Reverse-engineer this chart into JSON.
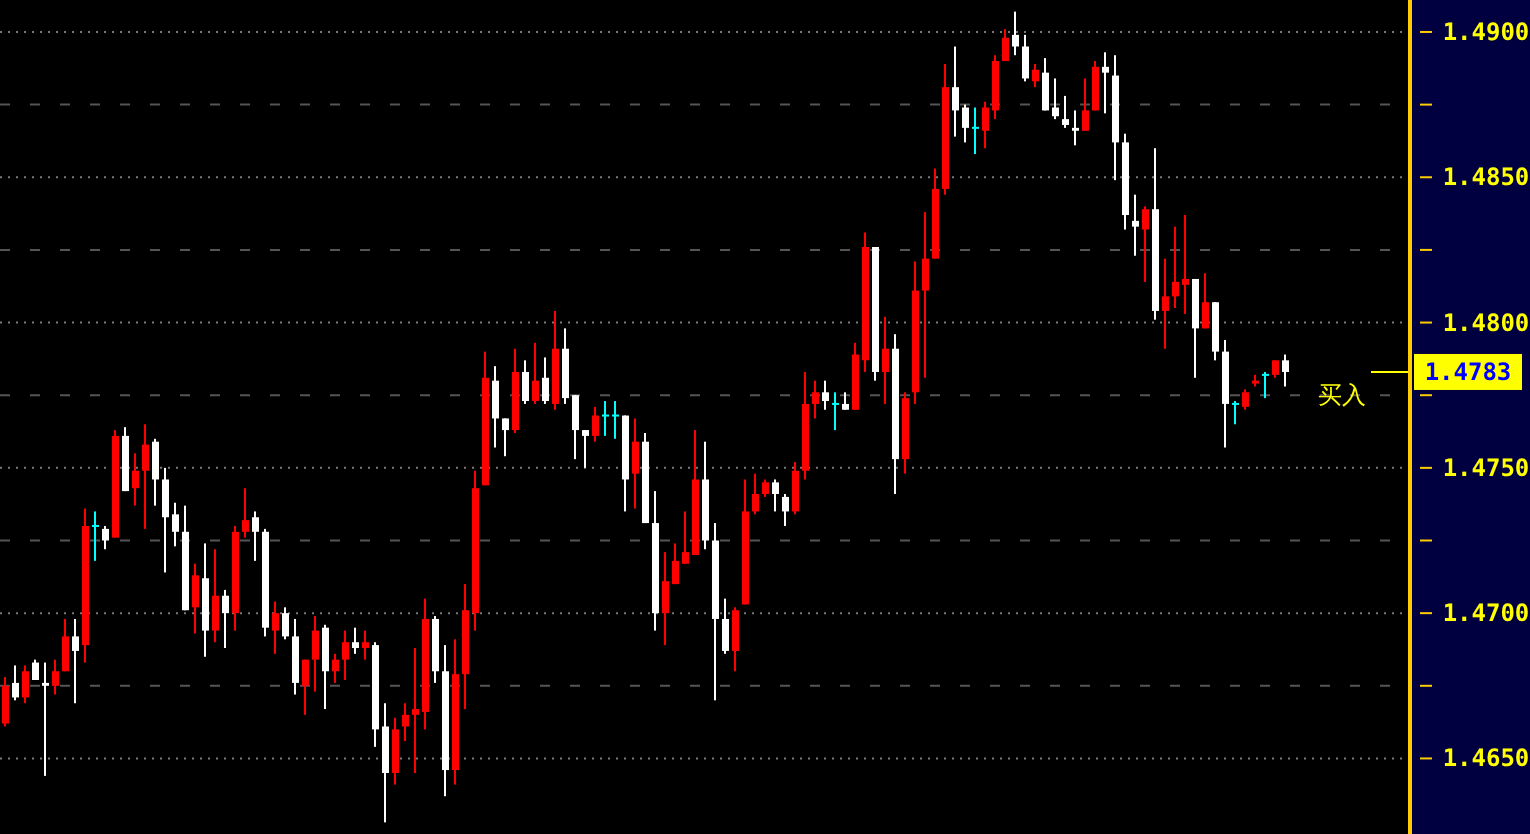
{
  "chart_data": {
    "type": "candlestick",
    "categories": [
      null,
      null,
      null,
      null,
      null,
      null,
      null,
      null,
      null,
      null,
      null,
      null,
      null,
      null,
      null,
      null,
      null,
      null,
      null,
      null,
      null,
      null,
      null,
      null,
      null,
      null,
      null,
      null,
      null,
      null,
      null,
      null,
      null,
      null,
      null,
      null,
      null,
      null,
      null,
      null,
      null,
      null,
      null,
      null,
      null,
      null,
      null,
      null,
      null,
      null,
      null,
      null,
      null,
      null,
      null,
      null,
      null,
      null,
      null,
      null,
      null,
      null,
      null,
      null,
      null,
      null,
      null,
      null,
      null,
      null,
      null,
      null,
      null,
      null,
      null,
      null,
      null,
      null,
      null,
      null,
      null,
      null,
      null,
      null,
      null,
      null,
      null,
      null,
      null,
      null,
      null,
      null,
      null,
      null,
      null,
      null,
      null,
      null,
      null,
      null,
      null,
      null,
      null,
      null,
      null,
      null,
      null,
      null,
      null,
      null,
      null,
      null,
      null,
      null,
      null,
      null,
      null,
      null,
      null,
      null,
      null,
      null,
      null,
      null,
      null,
      null,
      null,
      null,
      null,
      null,
      null,
      null,
      null,
      null,
      null,
      null,
      null,
      null,
      null,
      null,
      null
    ],
    "ohlc": [
      [
        1.4662,
        1.4678,
        1.4661,
        1.4675
      ],
      [
        1.4676,
        1.4682,
        1.467,
        1.4671
      ],
      [
        1.4671,
        1.4682,
        1.4669,
        1.468
      ],
      [
        1.4683,
        1.4684,
        1.4677,
        1.4677
      ],
      [
        1.4676,
        1.4683,
        1.4644,
        1.4675
      ],
      [
        1.4675,
        1.4684,
        1.4672,
        1.468
      ],
      [
        1.468,
        1.4698,
        1.468,
        1.4692
      ],
      [
        1.4692,
        1.4698,
        1.4669,
        1.4687
      ],
      [
        1.4689,
        1.4736,
        1.4683,
        1.473
      ],
      [
        1.473,
        1.4735,
        1.4718,
        1.473
      ],
      [
        1.4729,
        1.473,
        1.4722,
        1.4725
      ],
      [
        1.4726,
        1.4763,
        1.4726,
        1.4761
      ],
      [
        1.4761,
        1.4764,
        1.4742,
        1.4742
      ],
      [
        1.4743,
        1.4755,
        1.4737,
        1.4749
      ],
      [
        1.4749,
        1.4765,
        1.4729,
        1.4758
      ],
      [
        1.4759,
        1.476,
        1.4737,
        1.4746
      ],
      [
        1.4746,
        1.475,
        1.4714,
        1.4733
      ],
      [
        1.4734,
        1.4738,
        1.4723,
        1.4728
      ],
      [
        1.4728,
        1.4737,
        1.4701,
        1.4701
      ],
      [
        1.4702,
        1.4717,
        1.4693,
        1.4713
      ],
      [
        1.4712,
        1.4724,
        1.4685,
        1.4694
      ],
      [
        1.4694,
        1.4722,
        1.469,
        1.4706
      ],
      [
        1.4706,
        1.4708,
        1.4688,
        1.47
      ],
      [
        1.47,
        1.473,
        1.4694,
        1.4728
      ],
      [
        1.4728,
        1.4743,
        1.4726,
        1.4732
      ],
      [
        1.4733,
        1.4735,
        1.4718,
        1.4728
      ],
      [
        1.4728,
        1.4729,
        1.4692,
        1.4695
      ],
      [
        1.4694,
        1.4704,
        1.4686,
        1.47
      ],
      [
        1.47,
        1.4702,
        1.4691,
        1.4692
      ],
      [
        1.4692,
        1.4698,
        1.4672,
        1.4676
      ],
      [
        1.4675,
        1.4684,
        1.4665,
        1.4684
      ],
      [
        1.4684,
        1.4699,
        1.4673,
        1.4694
      ],
      [
        1.4695,
        1.4696,
        1.4667,
        1.468
      ],
      [
        1.468,
        1.4686,
        1.4676,
        1.4684
      ],
      [
        1.4684,
        1.4694,
        1.4677,
        1.469
      ],
      [
        1.469,
        1.4695,
        1.4686,
        1.4688
      ],
      [
        1.4688,
        1.4694,
        1.4684,
        1.469
      ],
      [
        1.4689,
        1.469,
        1.4654,
        1.466
      ],
      [
        1.4661,
        1.4669,
        1.4628,
        1.4645
      ],
      [
        1.4645,
        1.4664,
        1.4641,
        1.466
      ],
      [
        1.4661,
        1.4669,
        1.4656,
        1.4665
      ],
      [
        1.4665,
        1.4688,
        1.4645,
        1.4667
      ],
      [
        1.4666,
        1.4705,
        1.466,
        1.4698
      ],
      [
        1.4698,
        1.4699,
        1.4676,
        1.468
      ],
      [
        1.468,
        1.4689,
        1.4637,
        1.4646
      ],
      [
        1.4646,
        1.4691,
        1.4641,
        1.4679
      ],
      [
        1.4679,
        1.471,
        1.4667,
        1.4701
      ],
      [
        1.47,
        1.4749,
        1.4694,
        1.4743
      ],
      [
        1.4744,
        1.479,
        1.4744,
        1.4781
      ],
      [
        1.478,
        1.4785,
        1.4757,
        1.4767
      ],
      [
        1.4767,
        1.4767,
        1.4754,
        1.4763
      ],
      [
        1.4763,
        1.4791,
        1.4762,
        1.4783
      ],
      [
        1.4783,
        1.4787,
        1.4772,
        1.4773
      ],
      [
        1.4773,
        1.4793,
        1.4772,
        1.478
      ],
      [
        1.4781,
        1.4788,
        1.4772,
        1.4773
      ],
      [
        1.4772,
        1.4804,
        1.477,
        1.4791
      ],
      [
        1.4791,
        1.4798,
        1.4772,
        1.4774
      ],
      [
        1.4775,
        1.4775,
        1.4753,
        1.4763
      ],
      [
        1.4763,
        1.4763,
        1.475,
        1.4761
      ],
      [
        1.4761,
        1.4771,
        1.4759,
        1.4768
      ],
      [
        1.4768,
        1.4773,
        1.4761,
        1.4768
      ],
      [
        1.4768,
        1.4773,
        1.476,
        1.4768
      ],
      [
        1.4768,
        1.4768,
        1.4735,
        1.4746
      ],
      [
        1.4748,
        1.4767,
        1.4736,
        1.4759
      ],
      [
        1.4759,
        1.4762,
        1.4731,
        1.4731
      ],
      [
        1.4731,
        1.4742,
        1.4694,
        1.47
      ],
      [
        1.47,
        1.4721,
        1.4689,
        1.4711
      ],
      [
        1.471,
        1.4724,
        1.471,
        1.4718
      ],
      [
        1.4717,
        1.4735,
        1.4717,
        1.4721
      ],
      [
        1.472,
        1.4763,
        1.472,
        1.4746
      ],
      [
        1.4746,
        1.4759,
        1.4722,
        1.4725
      ],
      [
        1.4725,
        1.4731,
        1.467,
        1.4698
      ],
      [
        1.4698,
        1.4705,
        1.4686,
        1.4687
      ],
      [
        1.4687,
        1.4702,
        1.468,
        1.4701
      ],
      [
        1.4703,
        1.4746,
        1.4703,
        1.4735
      ],
      [
        1.4735,
        1.4748,
        1.4734,
        1.4741
      ],
      [
        1.4741,
        1.4746,
        1.474,
        1.4745
      ],
      [
        1.4745,
        1.4746,
        1.4735,
        1.4741
      ],
      [
        1.474,
        1.4741,
        1.473,
        1.4735
      ],
      [
        1.4735,
        1.4752,
        1.4734,
        1.4749
      ],
      [
        1.4749,
        1.4783,
        1.4746,
        1.4772
      ],
      [
        1.4772,
        1.478,
        1.4767,
        1.4776
      ],
      [
        1.4776,
        1.478,
        1.477,
        1.4773
      ],
      [
        1.4772,
        1.4776,
        1.4763,
        1.4772
      ],
      [
        1.4772,
        1.4776,
        1.477,
        1.477
      ],
      [
        1.477,
        1.4793,
        1.477,
        1.4789
      ],
      [
        1.4787,
        1.4831,
        1.4783,
        1.4826
      ],
      [
        1.4826,
        1.4826,
        1.478,
        1.4783
      ],
      [
        1.4783,
        1.4802,
        1.4772,
        1.4791
      ],
      [
        1.4791,
        1.4796,
        1.4741,
        1.4753
      ],
      [
        1.4753,
        1.4776,
        1.4748,
        1.4774
      ],
      [
        1.4776,
        1.4821,
        1.4772,
        1.4811
      ],
      [
        1.4811,
        1.4838,
        1.4781,
        1.4822
      ],
      [
        1.4822,
        1.4853,
        1.4822,
        1.4846
      ],
      [
        1.4846,
        1.4889,
        1.4844,
        1.4881
      ],
      [
        1.4881,
        1.4895,
        1.4864,
        1.4873
      ],
      [
        1.4874,
        1.4875,
        1.4862,
        1.4867
      ],
      [
        1.4867,
        1.4874,
        1.4858,
        1.4867
      ],
      [
        1.4866,
        1.4876,
        1.486,
        1.4874
      ],
      [
        1.4873,
        1.4892,
        1.487,
        1.489
      ],
      [
        1.489,
        1.4901,
        1.489,
        1.4898
      ],
      [
        1.4899,
        1.4907,
        1.4892,
        1.4895
      ],
      [
        1.4895,
        1.4899,
        1.4883,
        1.4884
      ],
      [
        1.4883,
        1.4889,
        1.4881,
        1.4887
      ],
      [
        1.4886,
        1.4891,
        1.4873,
        1.4873
      ],
      [
        1.4874,
        1.4884,
        1.487,
        1.4871
      ],
      [
        1.487,
        1.4878,
        1.4867,
        1.4868
      ],
      [
        1.4867,
        1.4873,
        1.4861,
        1.4866
      ],
      [
        1.4866,
        1.4884,
        1.4866,
        1.4873
      ],
      [
        1.4873,
        1.489,
        1.4873,
        1.4888
      ],
      [
        1.4888,
        1.4893,
        1.4872,
        1.4886
      ],
      [
        1.4885,
        1.4892,
        1.4849,
        1.4862
      ],
      [
        1.4862,
        1.4865,
        1.4832,
        1.4837
      ],
      [
        1.4835,
        1.4844,
        1.4823,
        1.4833
      ],
      [
        1.4832,
        1.484,
        1.4814,
        1.4839
      ],
      [
        1.4839,
        1.486,
        1.4801,
        1.4804
      ],
      [
        1.4804,
        1.4822,
        1.4791,
        1.4809
      ],
      [
        1.4809,
        1.4833,
        1.4805,
        1.4814
      ],
      [
        1.4813,
        1.4837,
        1.4803,
        1.4815
      ],
      [
        1.4815,
        1.4815,
        1.4781,
        1.4798
      ],
      [
        1.4798,
        1.4817,
        1.4798,
        1.4807
      ],
      [
        1.4807,
        1.4807,
        1.4787,
        1.479
      ],
      [
        1.479,
        1.4794,
        1.4757,
        1.4772
      ],
      [
        1.4772,
        1.4773,
        1.4765,
        1.4772
      ],
      [
        1.4771,
        1.4777,
        1.477,
        1.4776
      ],
      [
        1.4779,
        1.4782,
        1.4778,
        1.478
      ],
      [
        1.4782,
        1.4783,
        1.4774,
        1.4782
      ],
      [
        1.4782,
        1.4787,
        1.4781,
        1.4787
      ],
      [
        1.4787,
        1.4789,
        1.4778,
        1.4783
      ],
      null,
      null,
      null,
      null,
      null,
      null,
      null,
      null,
      null,
      null,
      null,
      null
    ],
    "colors": [
      "#ff0000",
      "#ffffff",
      "#ff0000",
      "#ffffff",
      "#ffffff",
      "#ff0000",
      "#ff0000",
      "#ffffff",
      "#ff0000",
      "#00ffff",
      "#ffffff",
      "#ff0000",
      "#ffffff",
      "#ff0000",
      "#ff0000",
      "#ffffff",
      "#ffffff",
      "#ffffff",
      "#ffffff",
      "#ff0000",
      "#ffffff",
      "#ff0000",
      "#ffffff",
      "#ff0000",
      "#ff0000",
      "#ffffff",
      "#ffffff",
      "#ff0000",
      "#ffffff",
      "#ffffff",
      "#ff0000",
      "#ff0000",
      "#ffffff",
      "#ff0000",
      "#ff0000",
      "#ffffff",
      "#ff0000",
      "#ffffff",
      "#ffffff",
      "#ff0000",
      "#ff0000",
      "#ff0000",
      "#ff0000",
      "#ffffff",
      "#ffffff",
      "#ff0000",
      "#ff0000",
      "#ff0000",
      "#ff0000",
      "#ffffff",
      "#ffffff",
      "#ff0000",
      "#ffffff",
      "#ff0000",
      "#ffffff",
      "#ff0000",
      "#ffffff",
      "#ffffff",
      "#ffffff",
      "#ff0000",
      "#00ffff",
      "#00ffff",
      "#ffffff",
      "#ff0000",
      "#ffffff",
      "#ffffff",
      "#ff0000",
      "#ff0000",
      "#ff0000",
      "#ff0000",
      "#ffffff",
      "#ffffff",
      "#ffffff",
      "#ff0000",
      "#ff0000",
      "#ff0000",
      "#ff0000",
      "#ffffff",
      "#ffffff",
      "#ff0000",
      "#ff0000",
      "#ff0000",
      "#ffffff",
      "#00ffff",
      "#ffffff",
      "#ff0000",
      "#ff0000",
      "#ffffff",
      "#ff0000",
      "#ffffff",
      "#ff0000",
      "#ff0000",
      "#ff0000",
      "#ff0000",
      "#ff0000",
      "#ffffff",
      "#ffffff",
      "#00ffff",
      "#ff0000",
      "#ff0000",
      "#ff0000",
      "#ffffff",
      "#ffffff",
      "#ff0000",
      "#ffffff",
      "#ffffff",
      "#ffffff",
      "#ffffff",
      "#ff0000",
      "#ff0000",
      "#ffffff",
      "#ffffff",
      "#ffffff",
      "#ffffff",
      "#ff0000",
      "#ffffff",
      "#ff0000",
      "#ff0000",
      "#ff0000",
      "#ffffff",
      "#ff0000",
      "#ffffff",
      "#ffffff",
      "#00ffff",
      "#ff0000",
      "#ff0000",
      "#00ffff",
      "#ff0000",
      "#ffffff",
      null,
      null,
      null,
      null,
      null,
      null,
      null,
      null,
      null,
      null,
      null,
      null
    ],
    "ylim": [
      1.4624,
      1.4911
    ],
    "yticks": [
      {
        "value": 1.465,
        "label": "1.4650"
      },
      {
        "value": 1.4675,
        "label": null
      },
      {
        "value": 1.47,
        "label": "1.4700"
      },
      {
        "value": 1.4725,
        "label": null
      },
      {
        "value": 1.475,
        "label": "1.4750"
      },
      {
        "value": 1.4775,
        "label": null
      },
      {
        "value": 1.48,
        "label": "1.4800"
      },
      {
        "value": 1.4825,
        "label": null
      },
      {
        "value": 1.485,
        "label": "1.4850"
      },
      {
        "value": 1.4875,
        "label": null
      },
      {
        "value": 1.49,
        "label": "1.4900"
      }
    ],
    "tick_labels": "y",
    "grid": true,
    "ref_lines": [
      {
        "axis": "y",
        "value": 1.4783,
        "label": "1.4783",
        "color": "#ffff00"
      }
    ],
    "annotations": [
      "买入"
    ]
  }
}
